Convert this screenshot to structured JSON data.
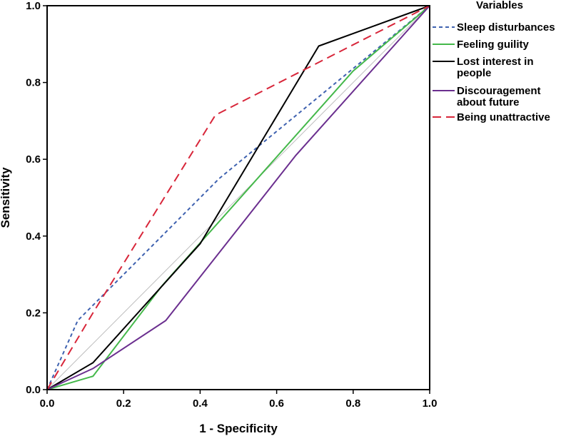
{
  "chart_data": {
    "type": "line",
    "xlabel": "1 - Specificity",
    "ylabel": "Sensitivity",
    "xlim": [
      0,
      1
    ],
    "ylim": [
      0,
      1
    ],
    "xticks": [
      "0.0",
      "0.2",
      "0.4",
      "0.6",
      "0.8",
      "1.0"
    ],
    "yticks": [
      "0.0",
      "0.2",
      "0.4",
      "0.6",
      "0.8",
      "1.0"
    ],
    "grid": false,
    "legend": {
      "title": "Variables",
      "placement": "right"
    },
    "series": [
      {
        "name": "Sleep disturbances",
        "color": "#3f62b0",
        "dash": "dotted",
        "points": [
          [
            0,
            0
          ],
          [
            0.08,
            0.18
          ],
          [
            0.45,
            0.55
          ],
          [
            1.0,
            1.0
          ]
        ]
      },
      {
        "name": "Feeling guility",
        "color": "#44b84a",
        "dash": "solid",
        "points": [
          [
            0,
            0
          ],
          [
            0.12,
            0.035
          ],
          [
            0.3,
            0.27
          ],
          [
            0.8,
            0.83
          ],
          [
            1.0,
            1.0
          ]
        ]
      },
      {
        "name": "Lost interest in people",
        "color": "#000000",
        "dash": "solid",
        "points": [
          [
            0,
            0
          ],
          [
            0.12,
            0.07
          ],
          [
            0.4,
            0.38
          ],
          [
            0.71,
            0.895
          ],
          [
            1.0,
            1.0
          ]
        ]
      },
      {
        "name": "Discouragement about future",
        "color": "#6b2f8f",
        "dash": "solid",
        "points": [
          [
            0,
            0
          ],
          [
            0.12,
            0.055
          ],
          [
            0.31,
            0.18
          ],
          [
            0.65,
            0.61
          ],
          [
            1.0,
            1.0
          ]
        ]
      },
      {
        "name": "Being unattractive",
        "color": "#d8263a",
        "dash": "dashed",
        "points": [
          [
            0,
            0
          ],
          [
            0.12,
            0.2
          ],
          [
            0.44,
            0.715
          ],
          [
            1.0,
            1.0
          ]
        ]
      }
    ]
  },
  "legend_lines": [
    [
      "Sleep disturbances"
    ],
    [
      "Feeling guility"
    ],
    [
      "Lost interest in",
      "people"
    ],
    [
      "Discouragement",
      "about future"
    ],
    [
      "Being unattractive"
    ]
  ]
}
